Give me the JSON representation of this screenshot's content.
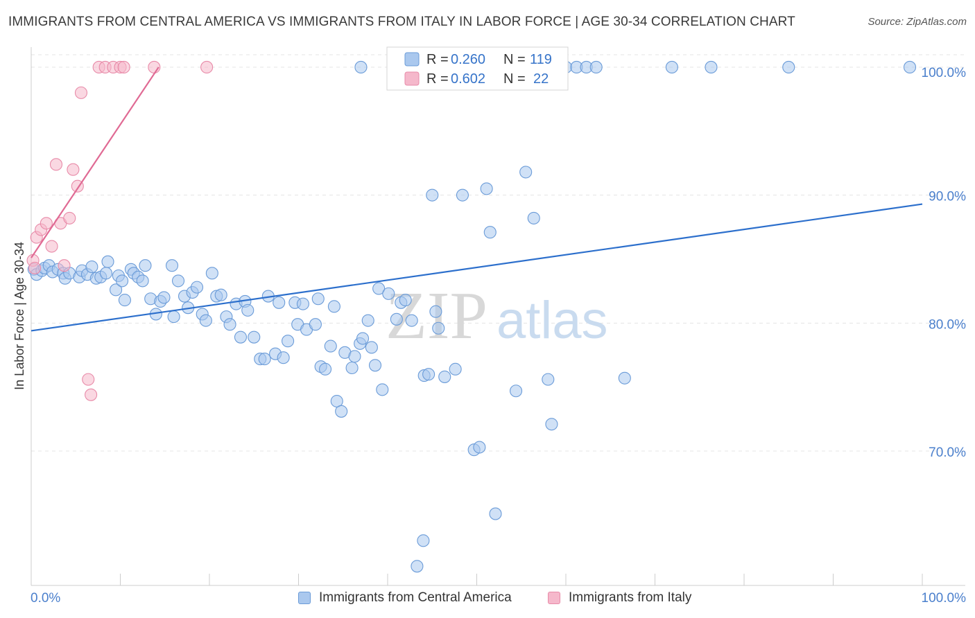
{
  "title": "IMMIGRANTS FROM CENTRAL AMERICA VS IMMIGRANTS FROM ITALY IN LABOR FORCE | AGE 30-34 CORRELATION CHART",
  "source": "Source: ZipAtlas.com",
  "watermark": {
    "zip": "ZIP",
    "atlas": "atlas"
  },
  "legend_box": [
    {
      "r_label": "R =",
      "r_value": "0.260",
      "n_label": "N =",
      "n_value": "119"
    },
    {
      "r_label": "R =",
      "r_value": "0.602",
      "n_label": "N =",
      "n_value": "22"
    }
  ],
  "bottom_legend": [
    {
      "label": "Immigrants from Central America"
    },
    {
      "label": "Immigrants from Italy"
    }
  ],
  "colors": {
    "blue_fill": "#aac8ee",
    "blue_stroke": "#6a9bd8",
    "blue_line": "#2c6fcc",
    "pink_fill": "#f5b8cb",
    "pink_stroke": "#e88aa8",
    "pink_line": "#e06a94",
    "tick_text": "#4a7fcc",
    "grid": "#e4e4e4"
  },
  "chart_data": {
    "type": "scatter",
    "xlabel": "",
    "ylabel": "In Labor Force | Age 30-34",
    "xlim": [
      0,
      100
    ],
    "ylim": [
      59.5,
      102
    ],
    "x_tick_labels": [
      "0.0%",
      "100.0%"
    ],
    "y_ticks": [
      70,
      80,
      90,
      100
    ],
    "y_tick_labels": [
      "70.0%",
      "80.0%",
      "90.0%",
      "100.0%"
    ],
    "grid": true,
    "legend_position": "top-center",
    "series": [
      {
        "name": "Immigrants from Central America",
        "color": "blue",
        "trend": {
          "x0": 0,
          "y0": 79.4,
          "x1": 100,
          "y1": 89.3
        },
        "points": [
          [
            0.3,
            84.2
          ],
          [
            0.6,
            83.8
          ],
          [
            1.2,
            84.1
          ],
          [
            1.5,
            84.3
          ],
          [
            2.0,
            84.5
          ],
          [
            2.4,
            84.0
          ],
          [
            3.0,
            84.2
          ],
          [
            3.6,
            83.9
          ],
          [
            3.8,
            83.5
          ],
          [
            4.3,
            83.9
          ],
          [
            5.4,
            83.6
          ],
          [
            5.7,
            84.1
          ],
          [
            6.3,
            83.8
          ],
          [
            6.8,
            84.4
          ],
          [
            7.3,
            83.5
          ],
          [
            7.8,
            83.6
          ],
          [
            8.4,
            83.9
          ],
          [
            8.6,
            84.8
          ],
          [
            9.5,
            82.6
          ],
          [
            9.8,
            83.7
          ],
          [
            10.2,
            83.3
          ],
          [
            10.5,
            81.8
          ],
          [
            11.2,
            84.2
          ],
          [
            11.5,
            83.9
          ],
          [
            12.0,
            83.6
          ],
          [
            12.5,
            83.3
          ],
          [
            12.8,
            84.5
          ],
          [
            13.4,
            81.9
          ],
          [
            14.0,
            80.7
          ],
          [
            14.5,
            81.7
          ],
          [
            14.9,
            82.0
          ],
          [
            15.8,
            84.5
          ],
          [
            16.0,
            80.5
          ],
          [
            16.5,
            83.3
          ],
          [
            17.2,
            82.1
          ],
          [
            17.6,
            81.2
          ],
          [
            18.1,
            82.4
          ],
          [
            18.6,
            82.8
          ],
          [
            19.2,
            80.7
          ],
          [
            19.6,
            80.2
          ],
          [
            20.3,
            83.9
          ],
          [
            20.8,
            82.1
          ],
          [
            21.3,
            82.2
          ],
          [
            21.9,
            80.5
          ],
          [
            22.3,
            79.9
          ],
          [
            23.0,
            81.5
          ],
          [
            23.5,
            78.9
          ],
          [
            24.0,
            81.7
          ],
          [
            24.3,
            81.0
          ],
          [
            25.0,
            78.9
          ],
          [
            25.7,
            77.2
          ],
          [
            26.2,
            77.2
          ],
          [
            26.6,
            82.1
          ],
          [
            27.4,
            77.6
          ],
          [
            27.8,
            81.6
          ],
          [
            28.3,
            77.3
          ],
          [
            28.8,
            78.6
          ],
          [
            29.6,
            81.6
          ],
          [
            29.9,
            79.9
          ],
          [
            30.5,
            81.5
          ],
          [
            30.9,
            79.5
          ],
          [
            31.9,
            79.9
          ],
          [
            32.2,
            81.9
          ],
          [
            32.5,
            76.6
          ],
          [
            33.0,
            76.4
          ],
          [
            33.6,
            78.2
          ],
          [
            34.0,
            81.3
          ],
          [
            34.3,
            73.9
          ],
          [
            34.8,
            73.1
          ],
          [
            35.2,
            77.7
          ],
          [
            36.0,
            76.5
          ],
          [
            36.3,
            77.4
          ],
          [
            36.9,
            78.4
          ],
          [
            37.2,
            78.8
          ],
          [
            37.8,
            80.2
          ],
          [
            38.2,
            78.1
          ],
          [
            38.6,
            76.7
          ],
          [
            39.0,
            82.7
          ],
          [
            39.4,
            74.8
          ],
          [
            40.1,
            82.3
          ],
          [
            41.0,
            80.3
          ],
          [
            41.5,
            81.6
          ],
          [
            42.0,
            81.8
          ],
          [
            42.7,
            80.2
          ],
          [
            44.1,
            75.9
          ],
          [
            44.6,
            76.0
          ],
          [
            45.0,
            90.0
          ],
          [
            45.4,
            80.9
          ],
          [
            45.7,
            79.6
          ],
          [
            46.4,
            75.8
          ],
          [
            47.6,
            76.4
          ],
          [
            48.4,
            90.0
          ],
          [
            49.7,
            70.1
          ],
          [
            50.3,
            70.3
          ],
          [
            51.1,
            90.5
          ],
          [
            51.5,
            87.1
          ],
          [
            52.1,
            65.1
          ],
          [
            54.4,
            74.7
          ],
          [
            55.5,
            91.8
          ],
          [
            56.4,
            88.2
          ],
          [
            58.0,
            75.6
          ],
          [
            58.4,
            72.1
          ],
          [
            66.6,
            75.7
          ],
          [
            58.7,
            100
          ],
          [
            60.0,
            100
          ],
          [
            61.2,
            100
          ],
          [
            62.3,
            100
          ],
          [
            63.4,
            100
          ],
          [
            71.9,
            100
          ],
          [
            76.3,
            100
          ],
          [
            85.0,
            100
          ],
          [
            98.6,
            100
          ],
          [
            53.0,
            100
          ],
          [
            47.5,
            100
          ],
          [
            49.8,
            100
          ],
          [
            56.0,
            100
          ],
          [
            37.0,
            100
          ],
          [
            44.0,
            63.0
          ],
          [
            43.3,
            61.0
          ]
        ]
      },
      {
        "name": "Immigrants from Italy",
        "color": "pink",
        "trend": {
          "x0": 0,
          "y0": 85.1,
          "x1": 14.3,
          "y1": 100
        },
        "points": [
          [
            0.2,
            84.9
          ],
          [
            0.4,
            84.3
          ],
          [
            0.6,
            86.7
          ],
          [
            1.1,
            87.3
          ],
          [
            1.7,
            87.8
          ],
          [
            2.3,
            86.0
          ],
          [
            2.8,
            92.4
          ],
          [
            3.3,
            87.8
          ],
          [
            3.7,
            84.5
          ],
          [
            4.3,
            88.2
          ],
          [
            4.7,
            92.0
          ],
          [
            5.2,
            90.7
          ],
          [
            5.6,
            98.0
          ],
          [
            6.4,
            75.6
          ],
          [
            6.7,
            74.4
          ],
          [
            7.6,
            100
          ],
          [
            8.3,
            100
          ],
          [
            9.2,
            100
          ],
          [
            10.0,
            100
          ],
          [
            10.4,
            100
          ],
          [
            13.8,
            100
          ],
          [
            19.7,
            100
          ]
        ]
      }
    ]
  }
}
